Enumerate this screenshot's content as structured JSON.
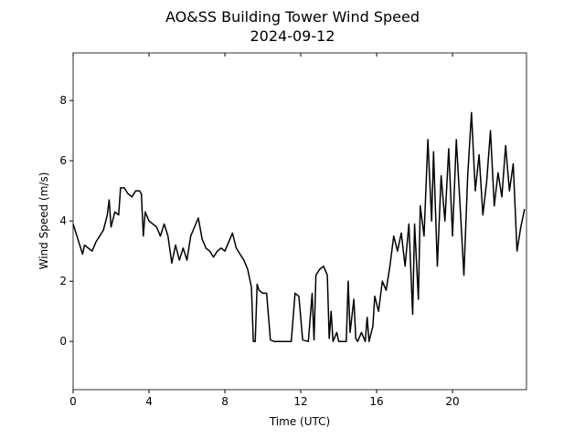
{
  "chart_data": {
    "type": "line",
    "title": "AO&SS Building Tower Wind Speed",
    "subtitle": "2024-09-12",
    "x_label": "Time (UTC)",
    "y_label": "Wind Speed (m/s)",
    "x": [
      0,
      0.2,
      0.4,
      0.5,
      0.6,
      0.8,
      1.0,
      1.2,
      1.4,
      1.6,
      1.8,
      1.9,
      2.0,
      2.2,
      2.4,
      2.5,
      2.7,
      2.9,
      3.1,
      3.3,
      3.5,
      3.6,
      3.7,
      3.8,
      4.0,
      4.2,
      4.4,
      4.6,
      4.8,
      5.0,
      5.2,
      5.4,
      5.6,
      5.8,
      6.0,
      6.2,
      6.4,
      6.6,
      6.8,
      7.0,
      7.2,
      7.4,
      7.6,
      7.8,
      8.0,
      8.2,
      8.4,
      8.6,
      8.8,
      9.0,
      9.2,
      9.4,
      9.5,
      9.6,
      9.7,
      9.8,
      10.0,
      10.2,
      10.4,
      10.6,
      11.0,
      11.5,
      11.7,
      11.9,
      12.1,
      12.4,
      12.6,
      12.7,
      12.8,
      13.0,
      13.2,
      13.4,
      13.5,
      13.6,
      13.7,
      13.9,
      14.0,
      14.4,
      14.5,
      14.6,
      14.8,
      14.9,
      15.0,
      15.2,
      15.4,
      15.5,
      15.6,
      15.8,
      15.9,
      16.1,
      16.3,
      16.5,
      16.7,
      16.9,
      17.1,
      17.3,
      17.5,
      17.7,
      17.9,
      18.0,
      18.2,
      18.3,
      18.5,
      18.7,
      18.9,
      19.0,
      19.2,
      19.4,
      19.6,
      19.8,
      20.0,
      20.2,
      20.4,
      20.6,
      20.8,
      21.0,
      21.2,
      21.4,
      21.6,
      21.8,
      22.0,
      22.2,
      22.4,
      22.6,
      22.8,
      23.0,
      23.2,
      23.4,
      23.6,
      23.8
    ],
    "series": [
      {
        "name": "Wind Speed",
        "color": "#000000",
        "values": [
          3.9,
          3.5,
          3.1,
          2.9,
          3.2,
          3.1,
          3.0,
          3.3,
          3.5,
          3.7,
          4.2,
          4.7,
          3.8,
          4.3,
          4.2,
          5.1,
          5.1,
          4.9,
          4.8,
          5.0,
          5.0,
          4.9,
          3.5,
          4.3,
          4.0,
          3.9,
          3.8,
          3.5,
          3.9,
          3.5,
          2.6,
          3.2,
          2.7,
          3.1,
          2.7,
          3.5,
          3.8,
          4.1,
          3.4,
          3.1,
          3.0,
          2.8,
          3.0,
          3.1,
          3.0,
          3.3,
          3.6,
          3.1,
          2.9,
          2.7,
          2.4,
          1.8,
          0.0,
          0.0,
          1.9,
          1.7,
          1.6,
          1.6,
          0.05,
          0.0,
          0.0,
          0.0,
          1.6,
          1.5,
          0.05,
          0.0,
          1.6,
          0.05,
          2.2,
          2.4,
          2.5,
          2.2,
          0.1,
          1.0,
          0.0,
          0.3,
          0.0,
          0.0,
          2.0,
          0.3,
          1.4,
          0.1,
          0.0,
          0.3,
          0.0,
          0.8,
          0.0,
          0.5,
          1.5,
          1.0,
          2.0,
          1.7,
          2.5,
          3.5,
          3.0,
          3.6,
          2.5,
          3.9,
          0.9,
          3.9,
          1.4,
          4.5,
          3.5,
          6.7,
          4.0,
          6.3,
          2.5,
          5.5,
          4.0,
          6.4,
          3.5,
          6.7,
          4.5,
          2.2,
          5.5,
          7.6,
          5.0,
          6.2,
          4.2,
          5.3,
          7.0,
          4.5,
          5.6,
          4.8,
          6.5,
          5.0,
          5.9,
          3.0,
          3.8,
          4.4
        ]
      }
    ],
    "xlim": [
      0,
      23.9
    ],
    "ylim": [
      -1.6,
      9.58
    ],
    "xticks": [
      0,
      4,
      8,
      12,
      16,
      20
    ],
    "yticks": [
      0,
      2,
      4,
      6,
      8
    ]
  }
}
